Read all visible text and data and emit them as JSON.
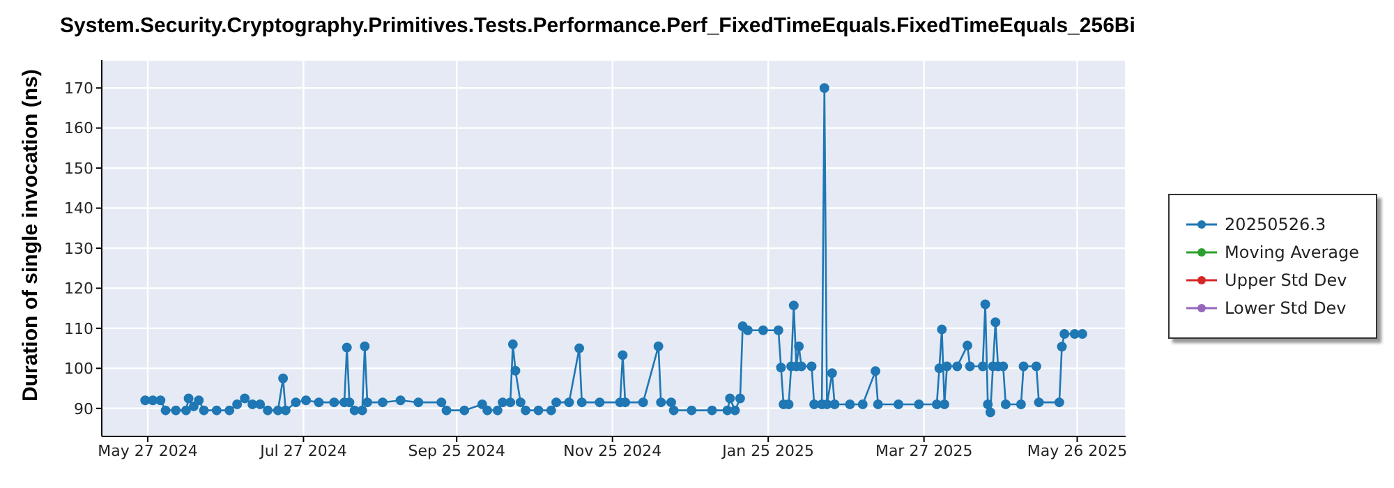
{
  "chart_data": {
    "type": "line",
    "title": "System.Security.Cryptography.Primitives.Tests.Performance.Perf_FixedTimeEquals.FixedTimeEquals_256Bi",
    "ylabel": "Duration of single invocation (ns)",
    "x": [
      "2024-05-26",
      "2024-05-29",
      "2024-06-01",
      "2024-06-03",
      "2024-06-07",
      "2024-06-11",
      "2024-06-12",
      "2024-06-14",
      "2024-06-16",
      "2024-06-18",
      "2024-06-23",
      "2024-06-28",
      "2024-07-01",
      "2024-07-04",
      "2024-07-07",
      "2024-07-10",
      "2024-07-13",
      "2024-07-17",
      "2024-07-19",
      "2024-07-20",
      "2024-07-24",
      "2024-07-28",
      "2024-08-02",
      "2024-08-08",
      "2024-08-12",
      "2024-08-13",
      "2024-08-14",
      "2024-08-16",
      "2024-08-19",
      "2024-08-20",
      "2024-08-21",
      "2024-08-27",
      "2024-09-03",
      "2024-09-10",
      "2024-09-19",
      "2024-09-21",
      "2024-09-28",
      "2024-10-05",
      "2024-10-07",
      "2024-10-11",
      "2024-10-13",
      "2024-10-16",
      "2024-10-17",
      "2024-10-18",
      "2024-10-20",
      "2024-10-22",
      "2024-10-27",
      "2024-11-01",
      "2024-11-03",
      "2024-11-08",
      "2024-11-12",
      "2024-11-13",
      "2024-11-20",
      "2024-11-28",
      "2024-11-29",
      "2024-11-30",
      "2024-12-07",
      "2024-12-13",
      "2024-12-14",
      "2024-12-18",
      "2024-12-19",
      "2024-12-26",
      "2025-01-03",
      "2025-01-09",
      "2025-01-10",
      "2025-01-12",
      "2025-01-14",
      "2025-01-15",
      "2025-01-17",
      "2025-01-23",
      "2025-01-29",
      "2025-01-30",
      "2025-01-31",
      "2025-02-02",
      "2025-02-03",
      "2025-02-04",
      "2025-02-05",
      "2025-02-06",
      "2025-02-07",
      "2025-02-11",
      "2025-02-12",
      "2025-02-15",
      "2025-02-16",
      "2025-02-17",
      "2025-02-19",
      "2025-02-20",
      "2025-02-26",
      "2025-03-03",
      "2025-03-08",
      "2025-03-09",
      "2025-03-17",
      "2025-03-25",
      "2025-04-01",
      "2025-04-02",
      "2025-04-03",
      "2025-04-04",
      "2025-04-05",
      "2025-04-09",
      "2025-04-13",
      "2025-04-14",
      "2025-04-19",
      "2025-04-20",
      "2025-04-21",
      "2025-04-22",
      "2025-04-23",
      "2025-04-24",
      "2025-04-25",
      "2025-04-27",
      "2025-04-28",
      "2025-05-04",
      "2025-05-05",
      "2025-05-10",
      "2025-05-11",
      "2025-05-19",
      "2025-05-20",
      "2025-05-21",
      "2025-05-25",
      "2025-05-28"
    ],
    "series": [
      {
        "name": "20250526.3",
        "color": "#1f77b4",
        "values": [
          92,
          92,
          92,
          89.5,
          89.5,
          89.5,
          92.5,
          90.5,
          92,
          89.5,
          89.5,
          89.5,
          91,
          92.5,
          91,
          91,
          89.5,
          89.5,
          97.5,
          89.5,
          91.5,
          92,
          91.5,
          91.5,
          91.5,
          105.2,
          91.5,
          89.5,
          89.5,
          105.5,
          91.5,
          91.5,
          92,
          91.5,
          91.5,
          89.5,
          89.5,
          91,
          89.5,
          89.5,
          91.5,
          91.5,
          106,
          99.4,
          91.5,
          89.5,
          89.5,
          89.5,
          91.5,
          91.5,
          105,
          91.5,
          91.5,
          91.5,
          103.3,
          91.5,
          91.5,
          105.5,
          91.5,
          91.5,
          89.5,
          89.5,
          89.5,
          89.5,
          92.5,
          89.5,
          92.5,
          110.5,
          109.5,
          109.5,
          109.5,
          100.2,
          91,
          91,
          100.5,
          115.7,
          100.5,
          105.5,
          100.5,
          100.5,
          91,
          91,
          170,
          91,
          98.8,
          91,
          91,
          91,
          99.3,
          91,
          91,
          91,
          91,
          100,
          109.7,
          91,
          100.5,
          100.5,
          105.7,
          100.5,
          100.5,
          116,
          91,
          89,
          100.5,
          111.5,
          100.5,
          100.5,
          91,
          91,
          100.5,
          100.5,
          91.5,
          91.5,
          105.4,
          108.6,
          108.6,
          108.6
        ]
      },
      {
        "name": "Moving Average",
        "color": "#2ca02c",
        "values": [
          null,
          null,
          null,
          null,
          null,
          null,
          null,
          null,
          null,
          null,
          null,
          null,
          null,
          null,
          null,
          null,
          null,
          null,
          null,
          null,
          null,
          null,
          null,
          null,
          null,
          null,
          null,
          null,
          null,
          null,
          null,
          null,
          null,
          null,
          null,
          null,
          null,
          null,
          null,
          null,
          null,
          null,
          null,
          null,
          null,
          null,
          null,
          null,
          null,
          null,
          null,
          null,
          null,
          null,
          null,
          null,
          null,
          null,
          null,
          null,
          null,
          null,
          null,
          null,
          null,
          null,
          null,
          null,
          null,
          null,
          null,
          null,
          null,
          null,
          null,
          null,
          null,
          null,
          null,
          null,
          null,
          null,
          null,
          null,
          null,
          null,
          null,
          null,
          null,
          null,
          null,
          null,
          null,
          null,
          null,
          null,
          null,
          null,
          null,
          null,
          null,
          null,
          null,
          null,
          null,
          null,
          null,
          null,
          null,
          null,
          null,
          null,
          null,
          null,
          null,
          null,
          null,
          null
        ]
      },
      {
        "name": "Upper Std Dev",
        "color": "#d62728",
        "values": [
          null,
          null,
          null,
          null,
          null,
          null,
          null,
          null,
          null,
          null,
          null,
          null,
          null,
          null,
          null,
          null,
          null,
          null,
          null,
          null,
          null,
          null,
          null,
          null,
          null,
          null,
          null,
          null,
          null,
          null,
          null,
          null,
          null,
          null,
          null,
          null,
          null,
          null,
          null,
          null,
          null,
          null,
          null,
          null,
          null,
          null,
          null,
          null,
          null,
          null,
          null,
          null,
          null,
          null,
          null,
          null,
          null,
          null,
          null,
          null,
          null,
          null,
          null,
          null,
          null,
          null,
          null,
          null,
          null,
          null,
          null,
          null,
          null,
          null,
          null,
          null,
          null,
          null,
          null,
          null,
          null,
          null,
          null,
          null,
          null,
          null,
          null,
          null,
          null,
          null,
          null,
          null,
          null,
          null,
          null,
          null,
          null,
          null,
          null,
          null,
          null,
          null,
          null,
          null,
          null,
          null,
          null,
          null,
          null,
          null,
          null,
          null,
          null,
          null,
          null,
          null,
          null,
          null
        ]
      },
      {
        "name": "Lower Std Dev",
        "color": "#9467bd",
        "values": [
          null,
          null,
          null,
          null,
          null,
          null,
          null,
          null,
          null,
          null,
          null,
          null,
          null,
          null,
          null,
          null,
          null,
          null,
          null,
          null,
          null,
          null,
          null,
          null,
          null,
          null,
          null,
          null,
          null,
          null,
          null,
          null,
          null,
          null,
          null,
          null,
          null,
          null,
          null,
          null,
          null,
          null,
          null,
          null,
          null,
          null,
          null,
          null,
          null,
          null,
          null,
          null,
          null,
          null,
          null,
          null,
          null,
          null,
          null,
          null,
          null,
          null,
          null,
          null,
          null,
          null,
          null,
          null,
          null,
          null,
          null,
          null,
          null,
          null,
          null,
          null,
          null,
          null,
          null,
          null,
          null,
          null,
          null,
          null,
          null,
          null,
          null,
          null,
          null,
          null,
          null,
          null,
          null,
          null,
          null,
          null,
          null,
          null,
          null,
          null,
          null,
          null,
          null,
          null,
          null,
          null,
          null,
          null,
          null,
          null,
          null,
          null,
          null,
          null,
          null,
          null,
          null,
          null
        ]
      }
    ],
    "xlim": [
      "2024-05-09",
      "2025-06-14"
    ],
    "xticks": [
      {
        "value": "2024-05-27",
        "label": "May 27 2024"
      },
      {
        "value": "2024-07-27",
        "label": "Jul 27 2024"
      },
      {
        "value": "2024-09-25",
        "label": "Sep 25 2024"
      },
      {
        "value": "2024-11-25",
        "label": "Nov 25 2024"
      },
      {
        "value": "2025-01-25",
        "label": "Jan 25 2025"
      },
      {
        "value": "2025-03-27",
        "label": "Mar 27 2025"
      },
      {
        "value": "2025-05-26",
        "label": "May 26 2025"
      }
    ],
    "ylim": [
      83,
      177
    ],
    "yticks": [
      90,
      100,
      110,
      120,
      130,
      140,
      150,
      160,
      170
    ],
    "grid": true,
    "legend": "right",
    "marker": "circle",
    "line_style": "solid"
  }
}
